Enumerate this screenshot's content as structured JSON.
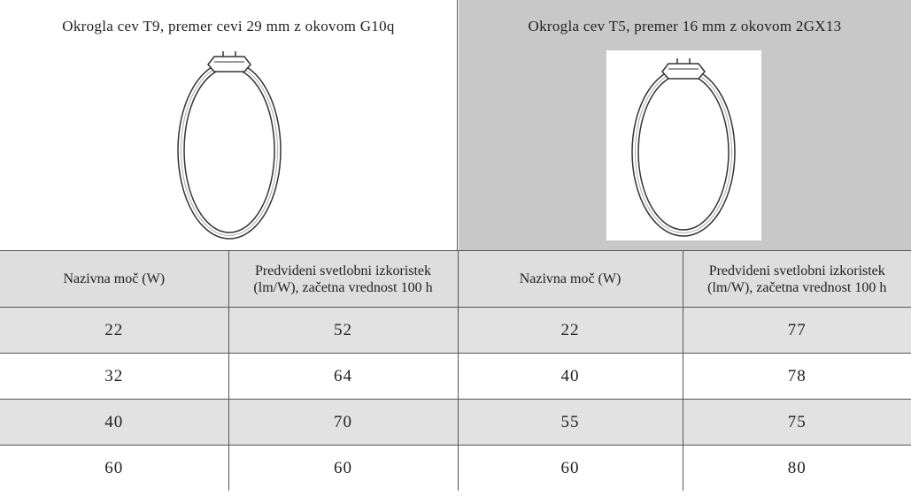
{
  "panels": [
    {
      "title": "Okrogla cev T9, premer cevi 29 mm z okovom G10q"
    },
    {
      "title": "Okrogla cev T5, premer 16 mm z okovom 2GX13"
    }
  ],
  "table": {
    "header": [
      "Nazivna moč (W)",
      "Predvideni svetlobni izkoristek (lm/W), začetna vrednost 100 h",
      "Nazivna moč (W)",
      "Predvideni svetlobni izkoristek (lm/W), začetna vrednost 100 h"
    ],
    "rows": [
      [
        22,
        52,
        22,
        77
      ],
      [
        32,
        64,
        40,
        78
      ],
      [
        40,
        70,
        55,
        75
      ],
      [
        60,
        60,
        60,
        80
      ]
    ]
  }
}
